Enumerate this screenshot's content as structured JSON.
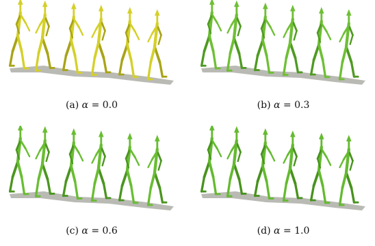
{
  "panels": [
    {
      "id": "p1",
      "label": "(a)",
      "symbol": "α",
      "eq": "= 0.0",
      "color": "#d4d02a",
      "dark": "#a8a418"
    },
    {
      "id": "p2",
      "label": "(b)",
      "symbol": "α",
      "eq": "= 0.3",
      "color": "#6fbf35",
      "dark": "#4f9a22"
    },
    {
      "id": "p3",
      "label": "(c)",
      "symbol": "α",
      "eq": "= 0.6",
      "color": "#69bd33",
      "dark": "#4b9520"
    },
    {
      "id": "p4",
      "label": "(d)",
      "symbol": "α",
      "eq": "= 1.0",
      "color": "#64ba30",
      "dark": "#47921d"
    }
  ]
}
